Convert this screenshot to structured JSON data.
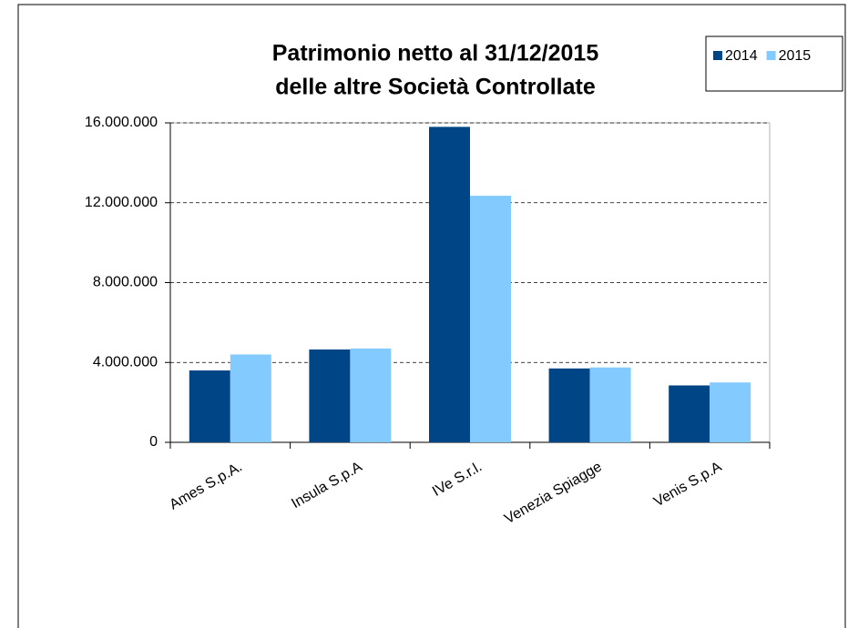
{
  "chart_data": {
    "type": "bar",
    "title": [
      "Patrimonio netto al 31/12/2015",
      "delle altre Società Controllate"
    ],
    "categories": [
      "Ames S.p.A.",
      "Insula S.p.A",
      "IVe S.r.l.",
      "Venezia Spiagge",
      "Venis S.p.A"
    ],
    "series": [
      {
        "name": "2014",
        "color": "#004586",
        "values": [
          3600000,
          4650000,
          15800000,
          3700000,
          2850000
        ]
      },
      {
        "name": "2015",
        "color": "#83caff",
        "values": [
          4400000,
          4700000,
          12350000,
          3750000,
          3000000
        ]
      }
    ],
    "ylim": [
      0,
      16000000
    ],
    "yticks": [
      0,
      {
        "value": 4000000,
        "label": "4.000.000"
      },
      {
        "value": 8000000,
        "label": "8.000.000"
      },
      {
        "value": 12000000,
        "label": "12.000.000"
      },
      {
        "value": 16000000,
        "label": "16.000.000"
      }
    ],
    "grid": true,
    "legend": "top-right"
  }
}
